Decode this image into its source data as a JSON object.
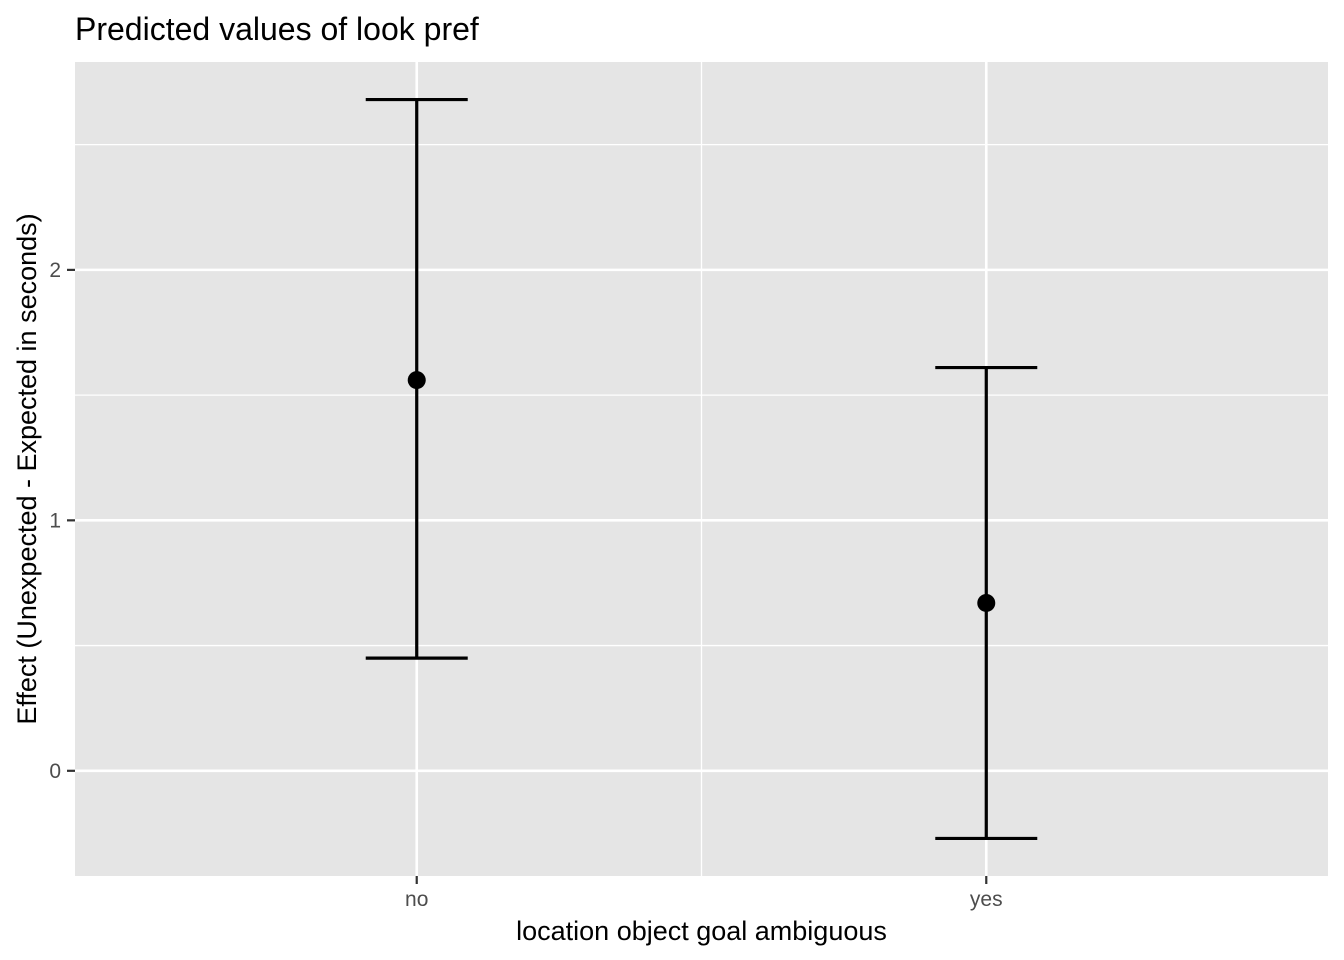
{
  "chart_data": {
    "type": "scatter",
    "title": "Predicted values of look pref",
    "xlabel": "location object goal ambiguous",
    "ylabel": "Effect (Unexpected - Expected in seconds)",
    "categories": [
      "no",
      "yes"
    ],
    "series": [
      {
        "values": [
          1.56,
          0.67
        ],
        "ci_low": [
          0.45,
          -0.27
        ],
        "ci_high": [
          2.68,
          1.61
        ]
      }
    ],
    "ylim": [
      -0.42,
      2.83
    ],
    "yticks": [
      0,
      1,
      2
    ],
    "ytick_labels": [
      "0",
      "1",
      "2"
    ],
    "grid": true,
    "legend": "none",
    "colors": {
      "panel_background": "#e5e5e5",
      "grid_line": "#ffffff",
      "mark": "#000000",
      "tick_label": "#4d4d4d",
      "tick_mark": "#333333"
    }
  }
}
